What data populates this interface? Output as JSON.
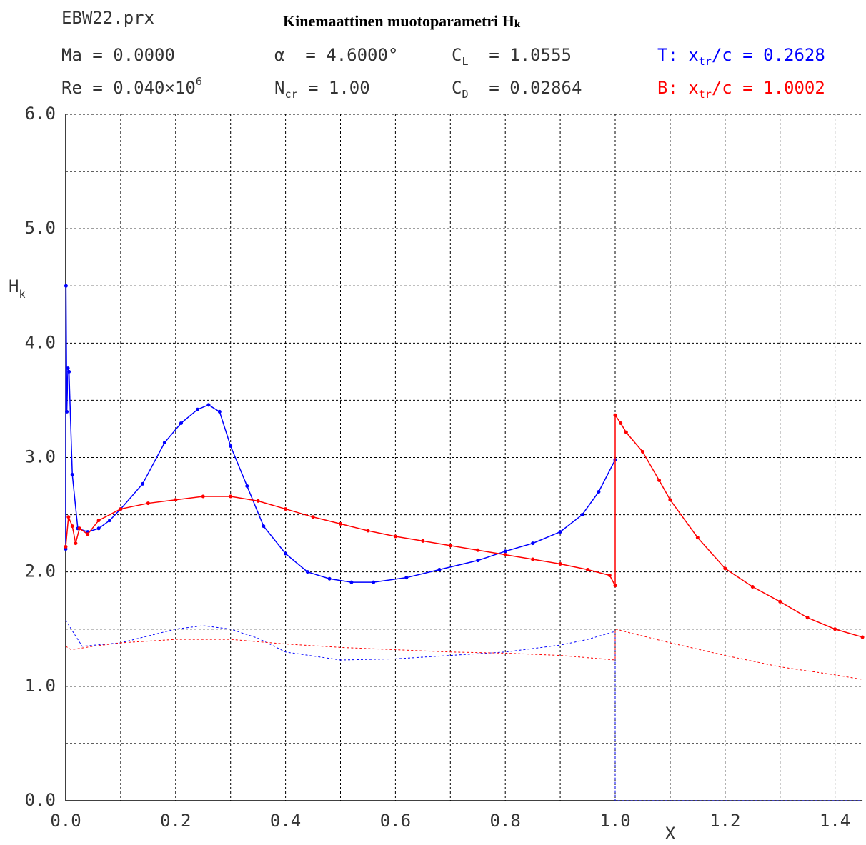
{
  "chart_data": {
    "type": "line",
    "file": "EBW22.prx",
    "title": {
      "text": "Kinemaattinen muotoparametri H",
      "sub": "k"
    },
    "params": {
      "ma": "Ma = 0.0000",
      "re": {
        "base": "Re = 0.040×10",
        "exp": "6"
      },
      "alpha": "α  = 4.6000°",
      "ncr": {
        "sym": "N",
        "sub": "cr",
        "rest": " = 1.00"
      },
      "cl": {
        "sym": "C",
        "sub": "L",
        "rest": "  = 1.0555"
      },
      "cd": {
        "sym": "C",
        "sub": "D",
        "rest": "  = 0.02864"
      },
      "top": {
        "sym": "T: x",
        "sub": "tr",
        "rest": "/c = 0.2628",
        "color": "#0000ff"
      },
      "bottom": {
        "sym": "B: x",
        "sub": "tr",
        "rest": "/c = 1.0002",
        "color": "#ff0000"
      }
    },
    "ylabel": {
      "sym": "H",
      "sub": "k"
    },
    "xlabel": "X",
    "xlim": [
      0,
      1.45
    ],
    "ylim": [
      0,
      6
    ],
    "xticks": [
      {
        "value": 0,
        "label": "0.0"
      },
      {
        "value": 0.2,
        "label": "0.2"
      },
      {
        "value": 0.4,
        "label": "0.4"
      },
      {
        "value": 0.6,
        "label": "0.6"
      },
      {
        "value": 0.8,
        "label": "0.8"
      },
      {
        "value": 1,
        "label": "1.0"
      },
      {
        "value": 1.2,
        "label": "1.2"
      },
      {
        "value": 1.4,
        "label": "1.4"
      }
    ],
    "xgrid": [
      0.1,
      0.3,
      0.5,
      0.7,
      0.9,
      1.1,
      1.3
    ],
    "yticks": [
      {
        "value": 0,
        "label": "0.0"
      },
      {
        "value": 1,
        "label": "1.0"
      },
      {
        "value": 2,
        "label": "2.0"
      },
      {
        "value": 3,
        "label": "3.0"
      },
      {
        "value": 4,
        "label": "4.0"
      },
      {
        "value": 5,
        "label": "5.0"
      },
      {
        "value": 6,
        "label": "6.0"
      }
    ],
    "ygrid": [
      0.5,
      1.5,
      2.5,
      3.5,
      4.5,
      5.5
    ],
    "grid": true,
    "series": [
      {
        "color": "#0000ff",
        "markers": true,
        "dashed": false,
        "x": [
          0,
          0.0005,
          0.002,
          0.004,
          0.006,
          0.012,
          0.022,
          0.04,
          0.06,
          0.08,
          0.1,
          0.14,
          0.18,
          0.21,
          0.24,
          0.26,
          0.28,
          0.3,
          0.33,
          0.36,
          0.4,
          0.44,
          0.48,
          0.52,
          0.56,
          0.62,
          0.68,
          0.75,
          0.8,
          0.85,
          0.9,
          0.94,
          0.97,
          1.0
        ],
        "values": [
          2.2,
          4.5,
          3.4,
          3.78,
          3.75,
          2.85,
          2.38,
          2.35,
          2.38,
          2.45,
          2.55,
          2.77,
          3.13,
          3.3,
          3.42,
          3.46,
          3.4,
          3.1,
          2.75,
          2.4,
          2.16,
          2.0,
          1.94,
          1.91,
          1.91,
          1.95,
          2.02,
          2.1,
          2.18,
          2.25,
          2.35,
          2.5,
          2.7,
          2.98
        ]
      },
      {
        "color": "#ff0000",
        "markers": true,
        "dashed": false,
        "x": [
          0,
          0.005,
          0.012,
          0.018,
          0.025,
          0.04,
          0.06,
          0.1,
          0.15,
          0.2,
          0.25,
          0.3,
          0.35,
          0.4,
          0.45,
          0.5,
          0.55,
          0.6,
          0.65,
          0.7,
          0.75,
          0.8,
          0.85,
          0.9,
          0.95,
          0.99,
          1.0,
          1.0,
          1.01,
          1.02,
          1.05,
          1.08,
          1.1,
          1.15,
          1.2,
          1.25,
          1.3,
          1.35,
          1.4,
          1.45
        ],
        "values": [
          2.22,
          2.48,
          2.4,
          2.25,
          2.38,
          2.33,
          2.45,
          2.55,
          2.6,
          2.63,
          2.66,
          2.66,
          2.62,
          2.55,
          2.48,
          2.42,
          2.36,
          2.31,
          2.27,
          2.23,
          2.19,
          2.15,
          2.11,
          2.07,
          2.02,
          1.97,
          1.88,
          3.37,
          3.3,
          3.22,
          3.05,
          2.8,
          2.63,
          2.3,
          2.03,
          1.87,
          1.74,
          1.6,
          1.5,
          1.43
        ]
      },
      {
        "color": "#0000ff",
        "markers": false,
        "dashed": true,
        "x": [
          0,
          0.01,
          0.03,
          0.1,
          0.2,
          0.25,
          0.3,
          0.35,
          0.4,
          0.5,
          0.6,
          0.7,
          0.8,
          0.9,
          0.95,
          1.0,
          1.0,
          1.45
        ],
        "values": [
          1.58,
          1.5,
          1.35,
          1.38,
          1.5,
          1.53,
          1.5,
          1.42,
          1.3,
          1.23,
          1.24,
          1.27,
          1.3,
          1.36,
          1.41,
          1.48,
          0,
          0
        ]
      },
      {
        "color": "#ff0000",
        "markers": false,
        "dashed": true,
        "x": [
          0,
          0.01,
          0.05,
          0.1,
          0.2,
          0.3,
          0.4,
          0.5,
          0.6,
          0.7,
          0.8,
          0.9,
          1.0,
          1.0,
          1.1,
          1.2,
          1.3,
          1.4,
          1.45
        ],
        "values": [
          1.35,
          1.32,
          1.35,
          1.38,
          1.41,
          1.41,
          1.37,
          1.34,
          1.32,
          1.3,
          1.29,
          1.27,
          1.23,
          1.5,
          1.38,
          1.27,
          1.17,
          1.1,
          1.06
        ]
      }
    ]
  }
}
